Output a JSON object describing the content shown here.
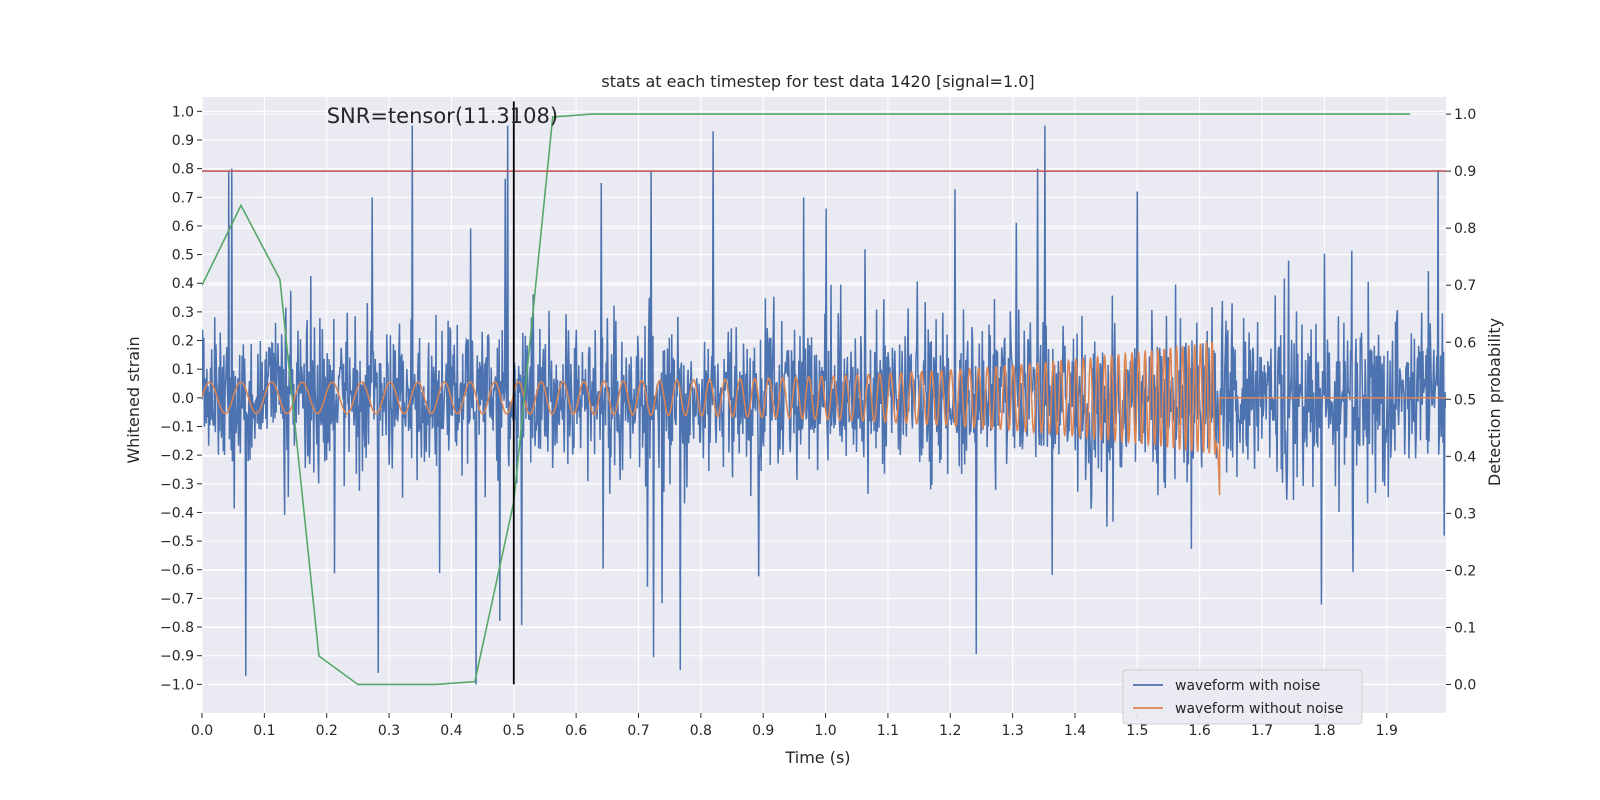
{
  "chart_data": {
    "type": "line",
    "title": "stats at each timestep for test data 1420 [signal=1.0]",
    "xlabel": "Time (s)",
    "ylabel": "Whitened strain",
    "y2label": "Detection probability",
    "xlim": [
      0.0,
      1.995
    ],
    "ylim": [
      -1.1,
      1.05
    ],
    "y2lim": [
      -0.05,
      1.03
    ],
    "xticks": [
      0.0,
      0.1,
      0.2,
      0.3,
      0.4,
      0.5,
      0.6,
      0.7,
      0.8,
      0.9,
      1.0,
      1.1,
      1.2,
      1.3,
      1.4,
      1.5,
      1.6,
      1.7,
      1.8,
      1.9
    ],
    "xtick_labels": [
      "0.0",
      "0.1",
      "0.2",
      "0.3",
      "0.4",
      "0.5",
      "0.6",
      "0.7",
      "0.8",
      "0.9",
      "1.0",
      "1.1",
      "1.2",
      "1.3",
      "1.4",
      "1.5",
      "1.6",
      "1.7",
      "1.8",
      "1.9"
    ],
    "yticks": [
      -1.0,
      -0.9,
      -0.8,
      -0.7,
      -0.6,
      -0.5,
      -0.4,
      -0.3,
      -0.2,
      -0.1,
      0.0,
      0.1,
      0.2,
      0.3,
      0.4,
      0.5,
      0.6,
      0.7,
      0.8,
      0.9,
      1.0
    ],
    "ytick_labels": [
      "−1.0",
      "−0.9",
      "−0.8",
      "−0.7",
      "−0.6",
      "−0.5",
      "−0.4",
      "−0.3",
      "−0.2",
      "−0.1",
      "0.0",
      "0.1",
      "0.2",
      "0.3",
      "0.4",
      "0.5",
      "0.6",
      "0.7",
      "0.8",
      "0.9",
      "1.0"
    ],
    "y2ticks": [
      0.0,
      0.1,
      0.2,
      0.3,
      0.4,
      0.5,
      0.6,
      0.7,
      0.8,
      0.9,
      1.0
    ],
    "y2tick_labels": [
      "0.0",
      "0.1",
      "0.2",
      "0.3",
      "0.4",
      "0.5",
      "0.6",
      "0.7",
      "0.8",
      "0.9",
      "1.0"
    ],
    "grid": true,
    "legend_position": "bottom-right",
    "annotation": {
      "text": "SNR=tensor(11.3108)",
      "x": 0.2,
      "y": 0.96
    },
    "series": [
      {
        "name": "waveform with noise",
        "color": "#4c72b0",
        "kind": "noise",
        "x_range": [
          0.0,
          1.995
        ],
        "amplitude_range": [
          -1.0,
          0.95
        ],
        "peaks": [
          {
            "x": 0.043,
            "y": 0.79
          },
          {
            "x": 0.048,
            "y": 0.8
          },
          {
            "x": 0.07,
            "y": -0.97
          },
          {
            "x": 0.283,
            "y": -0.96
          },
          {
            "x": 0.49,
            "y": 0.95
          },
          {
            "x": 0.44,
            "y": -1.0
          },
          {
            "x": 0.64,
            "y": 0.75
          },
          {
            "x": 0.72,
            "y": 0.79
          },
          {
            "x": 0.767,
            "y": -0.95
          },
          {
            "x": 0.82,
            "y": 0.93
          },
          {
            "x": 1.34,
            "y": 0.8
          },
          {
            "x": 1.5,
            "y": 0.72
          }
        ]
      },
      {
        "name": "waveform without noise",
        "color": "#dd8452",
        "kind": "chirp",
        "start_frequency": 20,
        "end_frequency": 110,
        "start_amplitude": 0.055,
        "end_amplitude": 0.2,
        "merger_time": 1.632,
        "ringdown_min": -0.33,
        "post_merger_value": 0.0
      },
      {
        "name": "detection probability",
        "color": "#55a868",
        "axis": "right",
        "x": [
          0.0,
          0.0625,
          0.125,
          0.1875,
          0.25,
          0.3125,
          0.375,
          0.4375,
          0.5,
          0.5625,
          0.625,
          0.6875,
          0.75,
          0.8125,
          0.875,
          0.9375,
          1.0,
          1.0625,
          1.125,
          1.1875,
          1.25,
          1.3125,
          1.375,
          1.4375,
          1.5,
          1.5625,
          1.625,
          1.6875,
          1.75,
          1.8125,
          1.875,
          1.9375
        ],
        "values": [
          0.7,
          0.84,
          0.71,
          0.05,
          0.0,
          0.0,
          0.0,
          0.005,
          0.32,
          0.995,
          1.0,
          1.0,
          1.0,
          1.0,
          1.0,
          1.0,
          1.0,
          1.0,
          1.0,
          1.0,
          1.0,
          1.0,
          1.0,
          1.0,
          1.0,
          1.0,
          1.0,
          1.0,
          1.0,
          1.0,
          1.0,
          1.0
        ]
      }
    ],
    "reference_lines": [
      {
        "name": "threshold-line",
        "orientation": "horizontal",
        "axis": "right",
        "value": 0.9,
        "color": "#c44e52"
      },
      {
        "name": "time-marker-line",
        "orientation": "vertical",
        "x": 0.5,
        "y_from": -1.0,
        "y_to": 1.0,
        "color": "#000000"
      }
    ]
  }
}
